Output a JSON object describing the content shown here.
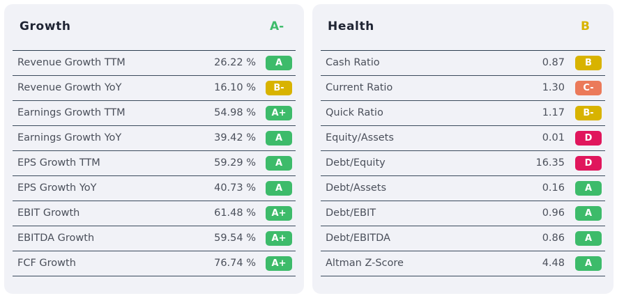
{
  "colors": {
    "A+": "#3dbb6a",
    "A": "#3dbb6a",
    "A-": "#3dbb6a",
    "B": "#d8b300",
    "B-": "#d8b300",
    "C-": "#eb7a5a",
    "D": "#e0165c"
  },
  "growth": {
    "title": "Growth",
    "grade": "A-",
    "rows": [
      {
        "label": "Revenue Growth TTM",
        "value": "26.22 %",
        "grade": "A"
      },
      {
        "label": "Revenue Growth YoY",
        "value": "16.10 %",
        "grade": "B-"
      },
      {
        "label": "Earnings Growth TTM",
        "value": "54.98 %",
        "grade": "A+"
      },
      {
        "label": "Earnings Growth YoY",
        "value": "39.42 %",
        "grade": "A"
      },
      {
        "label": "EPS Growth TTM",
        "value": "59.29 %",
        "grade": "A"
      },
      {
        "label": "EPS Growth YoY",
        "value": "40.73 %",
        "grade": "A"
      },
      {
        "label": "EBIT Growth",
        "value": "61.48 %",
        "grade": "A+"
      },
      {
        "label": "EBITDA Growth",
        "value": "59.54 %",
        "grade": "A+"
      },
      {
        "label": "FCF Growth",
        "value": "76.74 %",
        "grade": "A+"
      }
    ]
  },
  "health": {
    "title": "Health",
    "grade": "B",
    "rows": [
      {
        "label": "Cash Ratio",
        "value": "0.87",
        "grade": "B"
      },
      {
        "label": "Current Ratio",
        "value": "1.30",
        "grade": "C-"
      },
      {
        "label": "Quick Ratio",
        "value": "1.17",
        "grade": "B-"
      },
      {
        "label": "Equity/Assets",
        "value": "0.01",
        "grade": "D"
      },
      {
        "label": "Debt/Equity",
        "value": "16.35",
        "grade": "D"
      },
      {
        "label": "Debt/Assets",
        "value": "0.16",
        "grade": "A"
      },
      {
        "label": "Debt/EBIT",
        "value": "0.96",
        "grade": "A"
      },
      {
        "label": "Debt/EBITDA",
        "value": "0.86",
        "grade": "A"
      },
      {
        "label": "Altman Z-Score",
        "value": "4.48",
        "grade": "A"
      }
    ]
  }
}
